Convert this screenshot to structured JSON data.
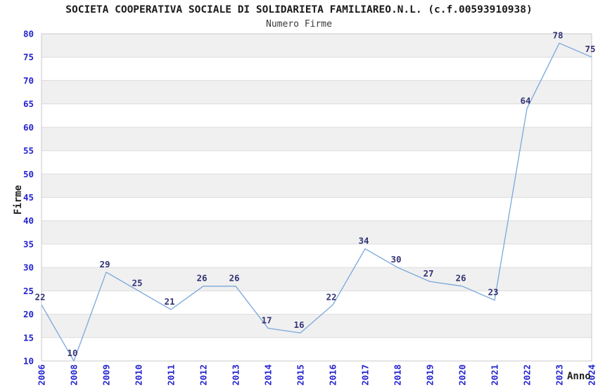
{
  "chart_data": {
    "type": "line",
    "title": "SOCIETA COOPERATIVA SOCIALE DI SOLIDARIETA FAMILIAREO.N.L. (c.f.00593910938)",
    "subtitle": "Numero Firme",
    "xlabel": "Anno",
    "ylabel": "Firme",
    "categories": [
      "2006",
      "2008",
      "2009",
      "2010",
      "2011",
      "2012",
      "2013",
      "2014",
      "2015",
      "2016",
      "2017",
      "2018",
      "2019",
      "2020",
      "2021",
      "2022",
      "2023",
      "2024"
    ],
    "values": [
      22,
      10,
      29,
      25,
      21,
      26,
      26,
      17,
      16,
      22,
      34,
      30,
      27,
      26,
      23,
      64,
      78,
      75
    ],
    "ylim": [
      10,
      80
    ],
    "ytick_step": 5,
    "grid": "horizontal-bands",
    "legend": "none",
    "data_labels_shown": true,
    "colors": {
      "line": "#7aa7db",
      "data_label": "#333377",
      "tick_label": "#2323cf",
      "band_gray": "#f0f0f0",
      "gridline": "#dcdcdc",
      "plot_border": "#c8c8c8",
      "title": "#1a1a1a",
      "subtitle": "#3a3a3a",
      "axis_label": "#222222",
      "background": "#ffffff"
    }
  }
}
